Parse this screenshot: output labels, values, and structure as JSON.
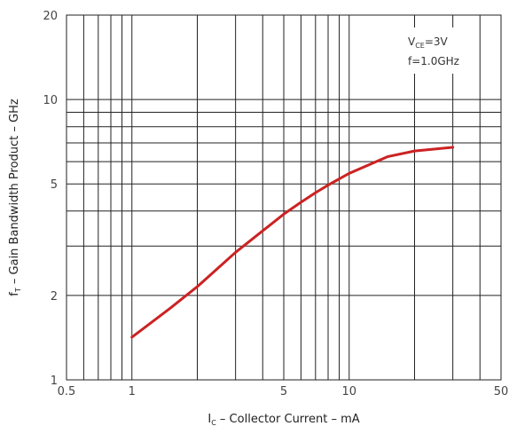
{
  "chart_data": {
    "type": "line",
    "xlabel": {
      "main": "I",
      "sub": "C",
      "rest": " – Collector Current – mA"
    },
    "ylabel": {
      "main": "f",
      "sub": "T",
      "rest": " – Gain Bandwidth Product – GHz"
    },
    "xscale": "log",
    "yscale": "log",
    "xlim": [
      0.5,
      50
    ],
    "ylim": [
      1,
      20
    ],
    "x_ticks": [
      0.5,
      1,
      5,
      10,
      50
    ],
    "x_tick_labels": [
      "0.5",
      "1",
      "5",
      "10",
      "50"
    ],
    "y_ticks": [
      1,
      2,
      5,
      10,
      20
    ],
    "y_tick_labels": [
      "1",
      "2",
      "5",
      "10",
      "20"
    ],
    "x_grid": [
      0.5,
      0.6,
      0.7,
      0.8,
      0.9,
      1,
      2,
      3,
      4,
      5,
      6,
      7,
      8,
      9,
      10,
      20,
      30,
      40,
      50
    ],
    "y_grid": [
      1,
      2,
      3,
      4,
      5,
      6,
      7,
      8,
      9,
      10,
      20
    ],
    "grid": true,
    "annotations": [
      {
        "main": "V",
        "sub": "CE",
        "rest": "=3V"
      },
      {
        "main": "f=1.0GHz",
        "sub": "",
        "rest": ""
      }
    ],
    "series": [
      {
        "color": "#cc2222",
        "x": [
          1,
          1.5,
          2,
          3,
          4,
          5,
          6,
          7,
          8,
          10,
          15,
          20,
          30
        ],
        "y": [
          1.42,
          1.8,
          2.15,
          2.85,
          3.4,
          3.9,
          4.3,
          4.65,
          4.95,
          5.45,
          6.25,
          6.55,
          6.75
        ]
      }
    ]
  }
}
